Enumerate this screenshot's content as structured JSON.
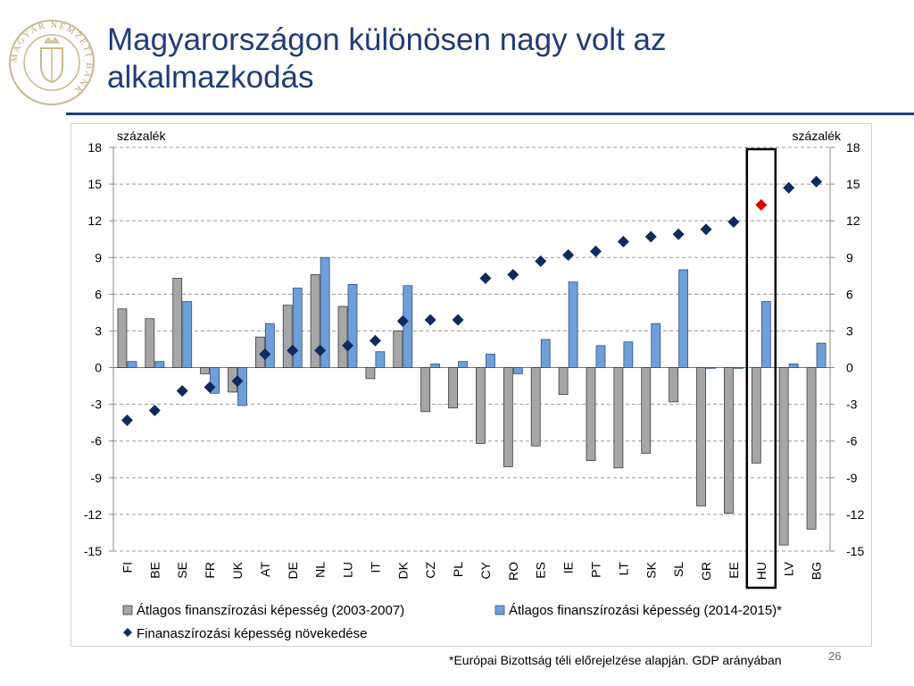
{
  "slide": {
    "title_line1": "Magyarországon különösen nagy volt az",
    "title_line2": "alkalmazkodás",
    "logo_text": "MAGYAR NEMZETI BANK",
    "footnote": "*Európai Bizottság téli előrejelzése alapján. GDP arányában",
    "page_number": "26",
    "title_color": "#1f3c78"
  },
  "chart_data": {
    "type": "bar",
    "categories": [
      "FI",
      "BE",
      "SE",
      "FR",
      "UK",
      "AT",
      "DE",
      "NL",
      "LU",
      "IT",
      "DK",
      "CZ",
      "PL",
      "CY",
      "RO",
      "ES",
      "IE",
      "PT",
      "LT",
      "SK",
      "SL",
      "GR",
      "EE",
      "HU",
      "LV",
      "BG"
    ],
    "series": [
      {
        "name": "Átlagos finanszírozási képesség (2003-2007)",
        "kind": "bar",
        "color": "#a6a6a6",
        "values": [
          4.8,
          4.0,
          7.3,
          -0.5,
          -2.0,
          2.5,
          5.1,
          7.6,
          5.0,
          -0.9,
          3.0,
          -3.6,
          -3.3,
          -6.2,
          -8.1,
          -6.4,
          -2.2,
          -7.6,
          -8.2,
          -7.0,
          -2.8,
          -11.3,
          -11.9,
          -7.8,
          -14.5,
          -13.2
        ]
      },
      {
        "name": "Átlagos finanszírozási képesség (2014-2015)*",
        "kind": "bar",
        "color": "#6f9fd8",
        "values": [
          0.5,
          0.5,
          5.4,
          -2.1,
          -3.1,
          3.6,
          6.5,
          9.0,
          6.8,
          1.3,
          6.7,
          0.3,
          0.5,
          1.1,
          -0.5,
          2.3,
          7.0,
          1.8,
          2.1,
          3.6,
          8.0,
          0.0,
          0.0,
          5.4,
          0.3,
          2.0
        ]
      },
      {
        "name": "Finanaszírozási képesség növekedése",
        "kind": "diamond",
        "color": "#0f2a5e",
        "highlight_color": "#e00000",
        "highlight_category": "HU",
        "values": [
          -4.3,
          -3.5,
          -1.9,
          -1.6,
          -1.1,
          1.1,
          1.4,
          1.4,
          1.8,
          2.2,
          3.8,
          3.9,
          3.9,
          7.3,
          7.6,
          8.7,
          9.2,
          9.5,
          10.3,
          10.7,
          10.9,
          11.3,
          11.9,
          13.3,
          14.7,
          15.2
        ]
      }
    ],
    "y_unit_left": "százalék",
    "y_unit_right": "százalék",
    "ylim": [
      -15,
      18
    ],
    "yticks": [
      -15,
      -12,
      -9,
      -6,
      -3,
      0,
      3,
      6,
      9,
      12,
      15,
      18
    ],
    "grid": "horizontal dashed",
    "legend_position": "bottom",
    "highlight_box_category": "HU"
  }
}
